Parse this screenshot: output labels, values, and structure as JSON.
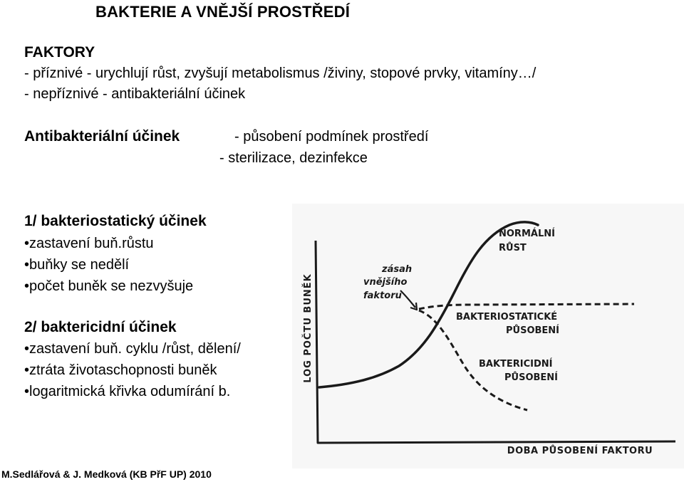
{
  "slide": {
    "title": "BAKTERIE  A  VNĚJŠÍ   PROSTŘEDÍ",
    "factors_heading": "FAKTORY",
    "factors_line1": "- příznivé - urychlují růst, zvyšují metabolismus /živiny, stopové prvky, vitamíny…/",
    "factors_line2": "- nepříznivé - antibakteriální účinek",
    "antibacterial_heading": "Antibakteriální účinek",
    "antibacterial_item1": "- působení podmínek prostředí",
    "antibacterial_item2": "- sterilizace, dezinfekce",
    "bacteriostatic": {
      "heading": "1/ bakteriostatický účinek",
      "bullets": [
        "•zastavení buň.růstu",
        "•buňky se nedělí",
        "•počet buněk se nezvyšuje"
      ]
    },
    "bactericidal": {
      "heading": "2/ baktericidní  účinek",
      "bullets": [
        "•zastavení buň. cyklu /růst, dělení/",
        "•ztráta životaschopnosti buněk",
        "•logaritmická křivka odumírání b."
      ]
    },
    "footer": "M.Sedlářová & J. Medková (KB PřF UP) 2010"
  },
  "figure": {
    "y_axis_label": "LOG POČTU BUNĚK",
    "x_axis_label": "DOBA PŮSOBENÍ FAKTORU",
    "label_normal_1": "NORMÁLNÍ",
    "label_normal_2": "RŮST",
    "label_intervention_1": "zásah",
    "label_intervention_2": "vnějšího",
    "label_intervention_3": "faktoru",
    "label_static_1": "BAKTERIOSTATICKÉ",
    "label_static_2": "PŮSOBENÍ",
    "label_cidal_1": "BAKTERICIDNÍ",
    "label_cidal_2": "PŮSOBENÍ",
    "ink_color": "#1a1a1a"
  }
}
